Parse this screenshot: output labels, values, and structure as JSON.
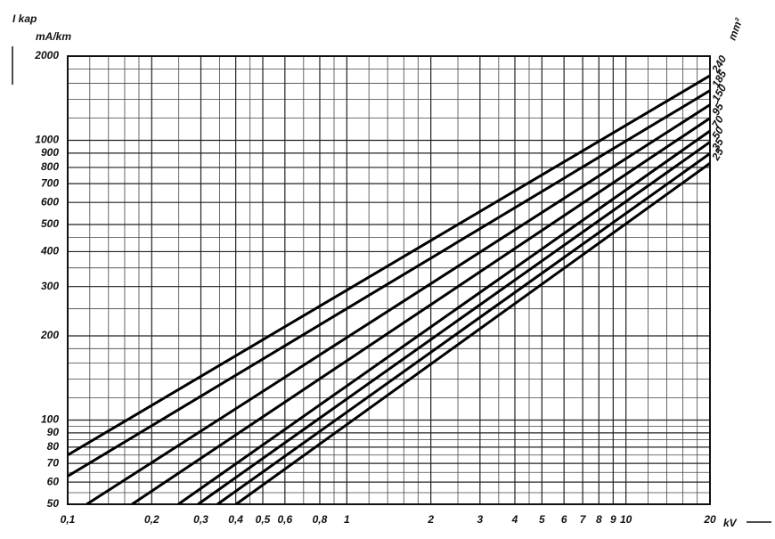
{
  "chart_data": {
    "type": "line",
    "y_label": "I kap",
    "y_unit": "mA/km",
    "x_unit": "kV",
    "legend_title": "mm²",
    "xscale": "log",
    "yscale": "log",
    "grid": true,
    "xlim": [
      0.1,
      20
    ],
    "ylim": [
      50,
      2000
    ],
    "xticks": [
      {
        "value": 0.1,
        "label": "0,1"
      },
      {
        "value": 0.2,
        "label": "0,2"
      },
      {
        "value": 0.3,
        "label": "0,3"
      },
      {
        "value": 0.4,
        "label": "0,4"
      },
      {
        "value": 0.5,
        "label": "0,5"
      },
      {
        "value": 0.6,
        "label": "0,6"
      },
      {
        "value": 0.8,
        "label": "0,8"
      },
      1,
      2,
      3,
      4,
      5,
      6,
      7,
      8,
      9,
      10,
      20
    ],
    "x_minor_grid": [
      0.12,
      0.14,
      0.16,
      0.18,
      0.25,
      0.35,
      0.45,
      0.7,
      0.9,
      1.2,
      1.4,
      1.6,
      1.8,
      2.5,
      3.5,
      4.5,
      12,
      14,
      16,
      18
    ],
    "yticks": [
      50,
      60,
      70,
      80,
      90,
      100,
      200,
      300,
      400,
      500,
      600,
      700,
      800,
      900,
      1000,
      2000
    ],
    "y_minor_grid": [
      55,
      65,
      75,
      85,
      95,
      120,
      140,
      160,
      180,
      250,
      350,
      450,
      1200,
      1400,
      1600,
      1800
    ],
    "series": [
      {
        "name": "240",
        "color": "#000000",
        "x": [
          0.1,
          20
        ],
        "values": [
          75,
          1703
        ]
      },
      {
        "name": "185",
        "color": "#000000",
        "x": [
          0.1,
          20
        ],
        "values": [
          63,
          1506
        ]
      },
      {
        "name": "150",
        "color": "#000000",
        "x": [
          0.117,
          20
        ],
        "values": [
          50,
          1340
        ]
      },
      {
        "name": "95",
        "color": "#000000",
        "x": [
          0.17,
          20
        ],
        "values": [
          50,
          1200
        ]
      },
      {
        "name": "70",
        "color": "#000000",
        "x": [
          0.249,
          20
        ],
        "values": [
          50,
          1080
        ]
      },
      {
        "name": "50",
        "color": "#000000",
        "x": [
          0.293,
          20
        ],
        "values": [
          50,
          986
        ]
      },
      {
        "name": "35",
        "color": "#000000",
        "x": [
          0.344,
          20
        ],
        "values": [
          50,
          897
        ]
      },
      {
        "name": "25",
        "color": "#000000",
        "x": [
          0.401,
          20
        ],
        "values": [
          50,
          828
        ]
      }
    ]
  }
}
